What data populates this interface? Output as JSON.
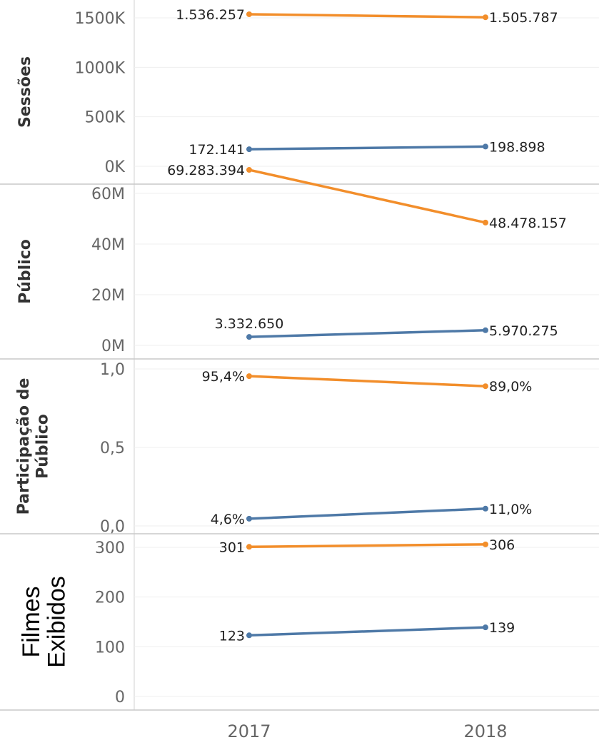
{
  "chart_data": [
    {
      "type": "line",
      "ylabel": "Sessões",
      "x": [
        "2017",
        "2018"
      ],
      "ylim": [
        0,
        1600000
      ],
      "yticks": [
        0,
        500000,
        1000000,
        1500000
      ],
      "ytick_labels": [
        "0K",
        "500K",
        "1000K",
        "1500K"
      ],
      "series": [
        {
          "color": "#f28e2b",
          "values": [
            1536257,
            1505787
          ],
          "labels": [
            "1.536.257",
            "1.505.787"
          ]
        },
        {
          "color": "#4e79a7",
          "values": [
            172141,
            198898
          ],
          "labels": [
            "172.141",
            "198.898"
          ]
        }
      ]
    },
    {
      "type": "line",
      "ylabel": "Público",
      "x": [
        "2017",
        "2018"
      ],
      "ylim": [
        0,
        72000000
      ],
      "yticks": [
        0,
        20000000,
        40000000,
        60000000
      ],
      "ytick_labels": [
        "0M",
        "20M",
        "40M",
        "60M"
      ],
      "series": [
        {
          "color": "#f28e2b",
          "values": [
            69283394,
            48478157
          ],
          "labels": [
            "69.283.394",
            "48.478.157"
          ]
        },
        {
          "color": "#4e79a7",
          "values": [
            3332650,
            5970275
          ],
          "labels": [
            "3.332.650",
            "5.970.275"
          ]
        }
      ]
    },
    {
      "type": "line",
      "ylabel": "Participação de Público",
      "ylabel_lines": [
        "Participação de",
        "Público"
      ],
      "x": [
        "2017",
        "2018"
      ],
      "ylim": [
        0,
        1.0
      ],
      "yticks": [
        0,
        0.5,
        1.0
      ],
      "ytick_labels": [
        "0,0",
        "0,5",
        "1,0"
      ],
      "series": [
        {
          "color": "#f28e2b",
          "values": [
            0.954,
            0.89
          ],
          "labels": [
            "95,4%",
            "89,0%"
          ]
        },
        {
          "color": "#4e79a7",
          "values": [
            0.046,
            0.11
          ],
          "labels": [
            "4,6%",
            "11,0%"
          ]
        }
      ]
    },
    {
      "type": "line",
      "ylabel": "Filmes Exibidos",
      "ylabel_lines": [
        "Filmes",
        "Exibidos"
      ],
      "x": [
        "2017",
        "2018"
      ],
      "ylim": [
        0,
        300
      ],
      "yticks": [
        0,
        100,
        200,
        300
      ],
      "ytick_labels": [
        "0",
        "100",
        "200",
        "300"
      ],
      "series": [
        {
          "color": "#f28e2b",
          "values": [
            301,
            306
          ],
          "labels": [
            "301",
            "306"
          ]
        },
        {
          "color": "#4e79a7",
          "values": [
            123,
            139
          ],
          "labels": [
            "123",
            "139"
          ]
        }
      ]
    }
  ],
  "x_axis": {
    "labels": [
      "2017",
      "2018"
    ]
  }
}
